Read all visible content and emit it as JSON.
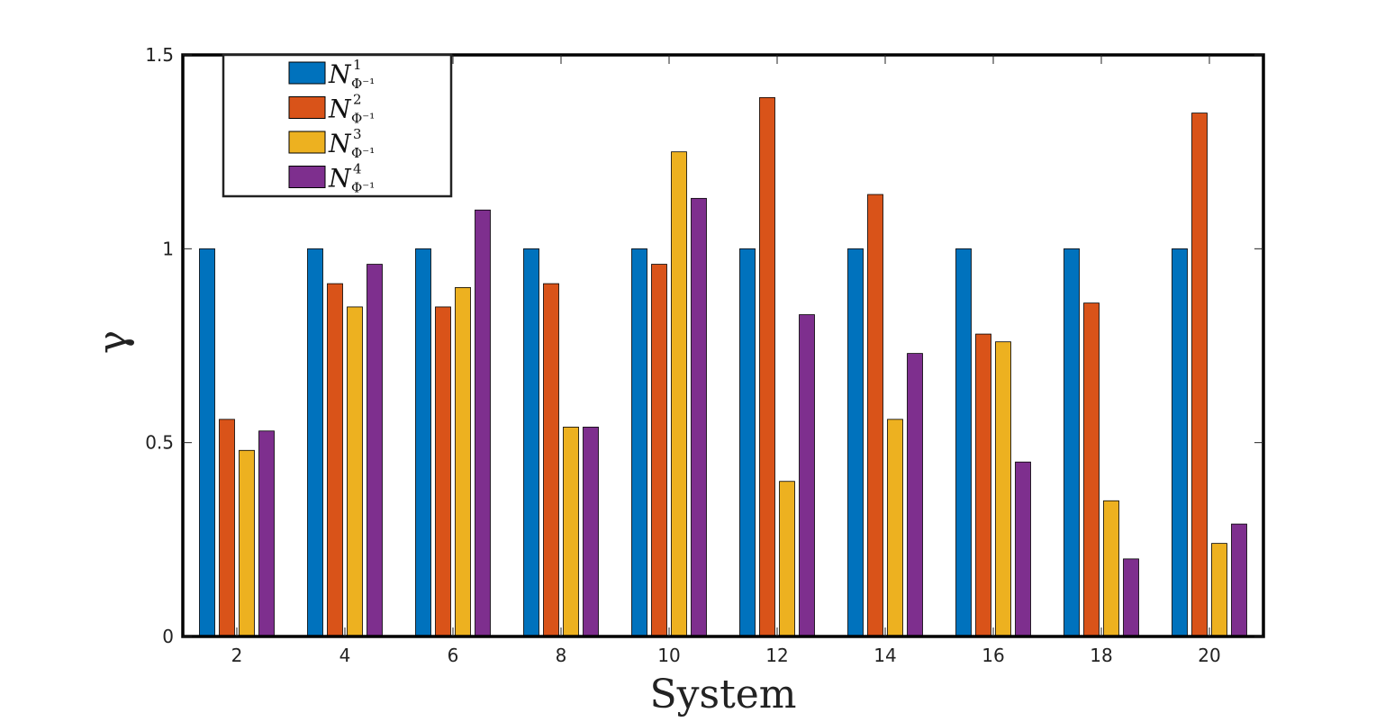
{
  "chart_data": {
    "type": "bar",
    "categories": [
      "2",
      "4",
      "6",
      "8",
      "10",
      "12",
      "14",
      "16",
      "18",
      "20"
    ],
    "series": [
      {
        "name": "N_{Φ^{-1}}^{1}",
        "label_main": "N",
        "label_sup": "1",
        "label_sub": "Φ⁻¹",
        "color": "#0072bd",
        "values": [
          1,
          1,
          1,
          1,
          1,
          1,
          1,
          1,
          1,
          1
        ]
      },
      {
        "name": "N_{Φ^{-1}}^{2}",
        "label_main": "N",
        "label_sup": "2",
        "label_sub": "Φ⁻¹",
        "color": "#d95319",
        "values": [
          0.56,
          0.91,
          0.85,
          0.91,
          0.96,
          1.39,
          1.14,
          0.78,
          0.86,
          1.35
        ]
      },
      {
        "name": "N_{Φ^{-1}}^{3}",
        "label_main": "N",
        "label_sup": "3",
        "label_sub": "Φ⁻¹",
        "color": "#edb120",
        "values": [
          0.48,
          0.85,
          0.9,
          0.54,
          1.25,
          0.4,
          0.56,
          0.76,
          0.35,
          0.24
        ]
      },
      {
        "name": "N_{Φ^{-1}}^{4}",
        "label_main": "N",
        "label_sup": "4",
        "label_sub": "Φ⁻¹",
        "color": "#7e2f8e",
        "values": [
          0.53,
          0.96,
          1.1,
          0.54,
          1.13,
          0.83,
          0.73,
          0.45,
          0.2,
          0.29
        ]
      }
    ],
    "xlabel": "System",
    "ylabel": "γ",
    "ylim": [
      0,
      1.5
    ],
    "yticks": [
      0,
      0.5,
      1,
      1.5
    ],
    "ytick_labels": [
      "0",
      "0.5",
      "1",
      "1.5"
    ],
    "grid": false,
    "legend_position": "top-left"
  }
}
